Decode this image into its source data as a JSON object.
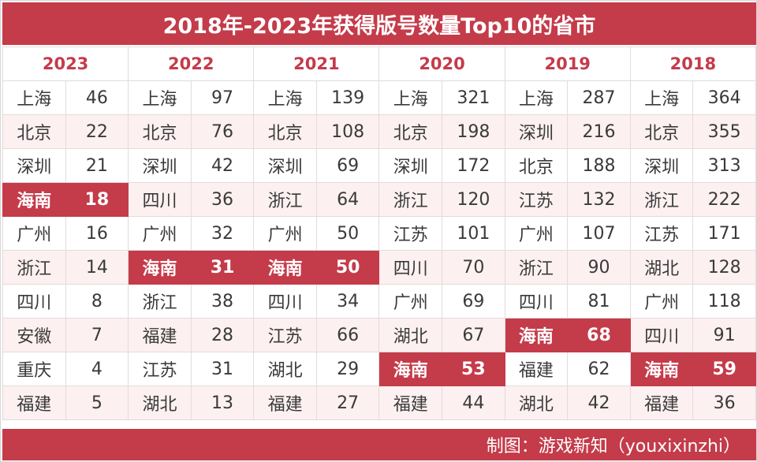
{
  "title": "2018年-2023年获得版号数量Top10的省市",
  "credit": "制图：游戏新知（youxixinzhi）",
  "colors": {
    "accent": "#c43b4a",
    "stripe": "#fdf0f1",
    "text": "#3a3a3a"
  },
  "chart_data": {
    "type": "table",
    "highlight": "海南",
    "columns": [
      {
        "year": "2023",
        "rows": [
          [
            "上海",
            46
          ],
          [
            "北京",
            22
          ],
          [
            "深圳",
            21
          ],
          [
            "海南",
            18
          ],
          [
            "广州",
            16
          ],
          [
            "浙江",
            14
          ],
          [
            "四川",
            8
          ],
          [
            "安徽",
            7
          ],
          [
            "重庆",
            4
          ],
          [
            "福建",
            5
          ]
        ]
      },
      {
        "year": "2022",
        "rows": [
          [
            "上海",
            97
          ],
          [
            "北京",
            76
          ],
          [
            "深圳",
            42
          ],
          [
            "四川",
            36
          ],
          [
            "广州",
            32
          ],
          [
            "海南",
            31
          ],
          [
            "浙江",
            38
          ],
          [
            "福建",
            28
          ],
          [
            "江苏",
            31
          ],
          [
            "湖北",
            13
          ]
        ]
      },
      {
        "year": "2021",
        "rows": [
          [
            "上海",
            139
          ],
          [
            "北京",
            108
          ],
          [
            "深圳",
            69
          ],
          [
            "浙江",
            64
          ],
          [
            "广州",
            50
          ],
          [
            "海南",
            50
          ],
          [
            "四川",
            34
          ],
          [
            "江苏",
            66
          ],
          [
            "湖北",
            29
          ],
          [
            "福建",
            27
          ]
        ]
      },
      {
        "year": "2020",
        "rows": [
          [
            "上海",
            321
          ],
          [
            "北京",
            198
          ],
          [
            "深圳",
            172
          ],
          [
            "浙江",
            120
          ],
          [
            "江苏",
            101
          ],
          [
            "四川",
            70
          ],
          [
            "广州",
            69
          ],
          [
            "湖北",
            67
          ],
          [
            "海南",
            53
          ],
          [
            "福建",
            44
          ]
        ]
      },
      {
        "year": "2019",
        "rows": [
          [
            "上海",
            287
          ],
          [
            "深圳",
            216
          ],
          [
            "北京",
            188
          ],
          [
            "江苏",
            132
          ],
          [
            "广州",
            107
          ],
          [
            "浙江",
            90
          ],
          [
            "四川",
            81
          ],
          [
            "海南",
            68
          ],
          [
            "福建",
            62
          ],
          [
            "湖北",
            42
          ]
        ]
      },
      {
        "year": "2018",
        "rows": [
          [
            "上海",
            364
          ],
          [
            "北京",
            355
          ],
          [
            "深圳",
            313
          ],
          [
            "浙江",
            222
          ],
          [
            "江苏",
            171
          ],
          [
            "湖北",
            128
          ],
          [
            "广州",
            118
          ],
          [
            "四川",
            91
          ],
          [
            "海南",
            59
          ],
          [
            "福建",
            36
          ]
        ]
      }
    ]
  }
}
